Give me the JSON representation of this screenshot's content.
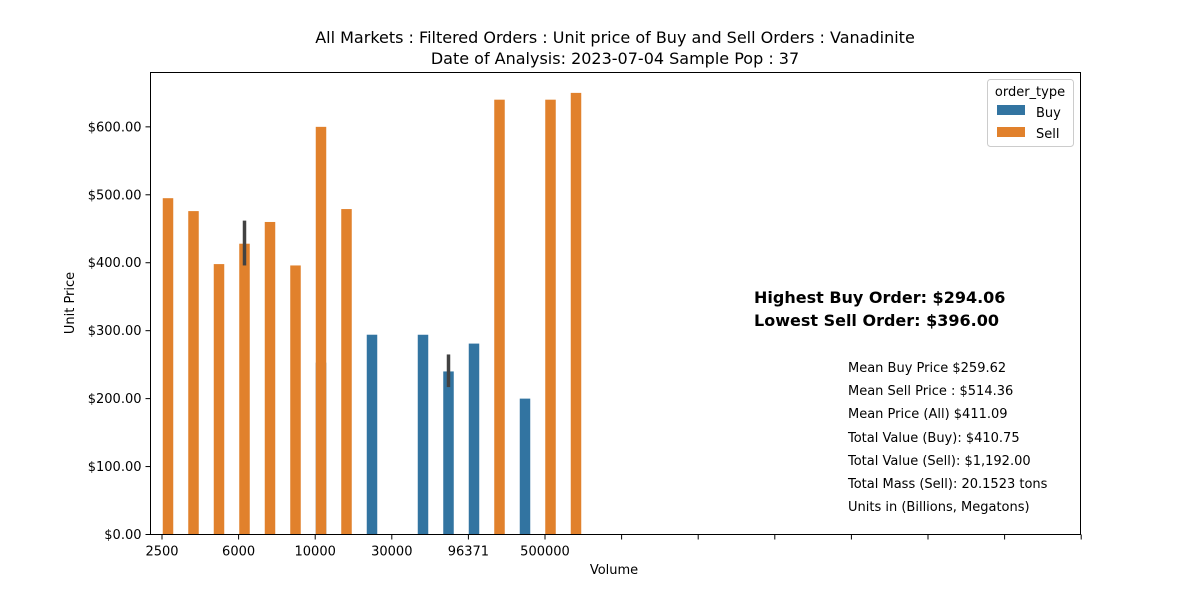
{
  "title_line1": "All Markets : Filtered Orders : Unit price of Buy and Sell Orders : Vanadinite",
  "title_line2": "Date of Analysis: 2023-07-04 Sample Pop : 37",
  "colors": {
    "buy": "#3274a1",
    "sell": "#e1812c",
    "error_bar": "#424242"
  },
  "chart_data": {
    "type": "bar",
    "xlabel": "Volume",
    "ylabel": "Unit Price",
    "ylim": [
      0,
      680
    ],
    "yticks": [
      "$0.00",
      "$100.00",
      "$200.00",
      "$300.00",
      "$400.00",
      "$500.00",
      "$600.00"
    ],
    "ytick_values": [
      0,
      100,
      200,
      300,
      400,
      500,
      600
    ],
    "xtick_labels": [
      "2500",
      "6000",
      "10000",
      "30000",
      "96371",
      "500000",
      "",
      "",
      "",
      "",
      "",
      "",
      ""
    ],
    "category_count": 17,
    "legend": {
      "title": "order_type",
      "placement": "top-right",
      "entries": [
        "Buy",
        "Sell"
      ]
    },
    "series": [
      {
        "name": "Buy",
        "values": [
          null,
          null,
          null,
          null,
          null,
          null,
          253,
          null,
          294.06,
          null,
          294,
          240,
          281,
          null,
          200,
          null,
          null
        ],
        "error": [
          null,
          null,
          null,
          null,
          null,
          null,
          null,
          null,
          null,
          null,
          null,
          [
            217,
            265
          ],
          null,
          null,
          null,
          null,
          null
        ]
      },
      {
        "name": "Sell",
        "values": [
          495,
          476,
          398,
          428,
          460,
          396,
          600,
          479,
          null,
          null,
          null,
          null,
          null,
          640,
          null,
          640,
          650
        ],
        "error": [
          null,
          null,
          null,
          [
            396,
            462
          ],
          null,
          null,
          null,
          null,
          null,
          null,
          null,
          null,
          null,
          null,
          null,
          null,
          null
        ]
      }
    ]
  },
  "annotations": {
    "highest_buy": "Highest Buy Order: $294.06",
    "lowest_sell": "Lowest Sell Order: $396.00",
    "stats": [
      "Mean Buy Price $259.62",
      "Mean Sell Price : $514.36",
      "Mean Price (All) $411.09",
      "Total Value (Buy): $410.75",
      "Total Value (Sell): $1,192.00",
      "Total Mass (Sell): 20.1523 tons",
      "Units in (Billions, Megatons)"
    ]
  }
}
